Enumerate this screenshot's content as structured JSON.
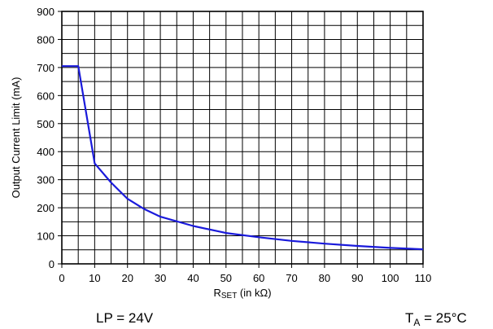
{
  "chart_data": {
    "type": "line",
    "xlabel_main": "R",
    "xlabel_sub": "SET",
    "xlabel_rest": " (in kΩ)",
    "ylabel": "Output Current Limit (mA)",
    "xlim": [
      0,
      110
    ],
    "ylim": [
      0,
      900
    ],
    "x_ticks": [
      0,
      10,
      20,
      30,
      40,
      50,
      60,
      70,
      80,
      90,
      100,
      110
    ],
    "y_ticks": [
      0,
      100,
      200,
      300,
      400,
      500,
      600,
      700,
      800,
      900
    ],
    "x_minor_step": 5,
    "y_minor_step": 50,
    "grid": true,
    "line_color": "#1a1adb",
    "series": [
      {
        "x": [
          0,
          5,
          10,
          15,
          20,
          25,
          30,
          40,
          50,
          60,
          70,
          80,
          90,
          100,
          110
        ],
        "values": [
          705,
          705,
          358,
          290,
          232,
          196,
          168,
          135,
          110,
          95,
          82,
          72,
          64,
          57,
          52
        ]
      }
    ]
  },
  "notes": {
    "left": "LP = 24V",
    "right_main": "T",
    "right_sub": "A",
    "right_rest": " = 25°C"
  }
}
